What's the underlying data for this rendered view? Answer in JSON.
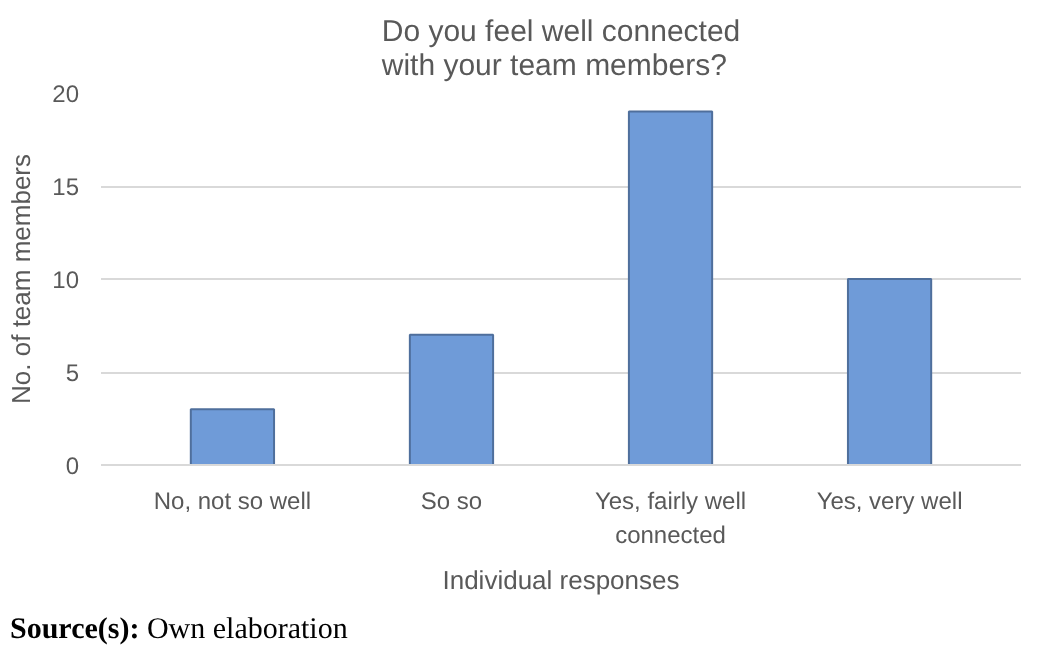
{
  "chart_data": {
    "type": "bar",
    "title": "Do you feel well connected\nwith your team members?",
    "categories": [
      "No, not so well",
      "So so",
      "Yes, fairly well\nconnected",
      "Yes, very well"
    ],
    "values": [
      3,
      7,
      19,
      10
    ],
    "color": "#6f9bd8",
    "ylim": [
      0,
      20
    ],
    "yticks": [
      0,
      5,
      10,
      15,
      20
    ],
    "grid": "y",
    "xlabel": "Individual responses",
    "ylabel": "No. of team members",
    "annotations": [
      "Source(s): Own elaboration"
    ]
  }
}
